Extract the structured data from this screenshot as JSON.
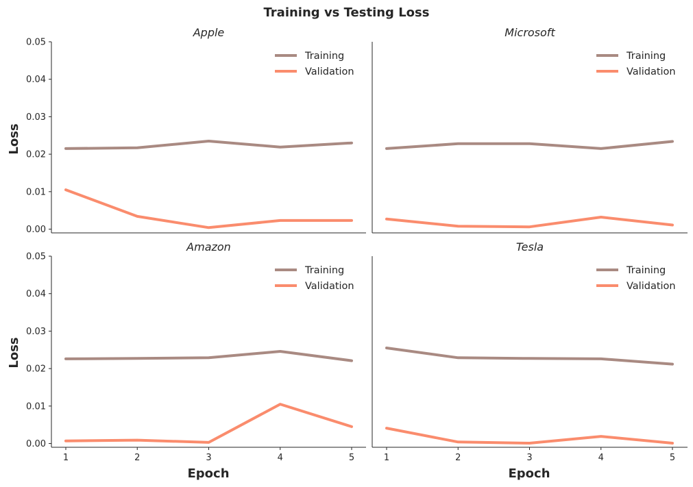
{
  "chart_data": {
    "type": "line",
    "title": "Training vs Testing Loss",
    "xlabel": "Epoch",
    "ylabel": "Loss",
    "x": [
      1,
      2,
      3,
      4,
      5
    ],
    "ylim": [
      -0.001,
      0.05
    ],
    "yticks": [
      "0.00",
      "0.01",
      "0.02",
      "0.03",
      "0.04",
      "0.05"
    ],
    "ytick_values": [
      0,
      0.01,
      0.02,
      0.03,
      0.04,
      0.05
    ],
    "legend_position": "top-right",
    "grid": false,
    "colors": {
      "Training": "#a98a82",
      "Validation": "#fa8c6d"
    },
    "panels": [
      {
        "title": "Apple",
        "series": [
          {
            "name": "Training",
            "values": [
              0.0215,
              0.0217,
              0.0235,
              0.0219,
              0.023
            ]
          },
          {
            "name": "Validation",
            "values": [
              0.0105,
              0.0034,
              0.0004,
              0.0023,
              0.0023
            ]
          }
        ]
      },
      {
        "title": "Microsoft",
        "series": [
          {
            "name": "Training",
            "values": [
              0.0215,
              0.0228,
              0.0228,
              0.0215,
              0.0234
            ]
          },
          {
            "name": "Validation",
            "values": [
              0.0027,
              0.0008,
              0.0006,
              0.0032,
              0.0011
            ]
          }
        ]
      },
      {
        "title": "Amazon",
        "series": [
          {
            "name": "Training",
            "values": [
              0.0226,
              0.0227,
              0.0229,
              0.0246,
              0.0221
            ]
          },
          {
            "name": "Validation",
            "values": [
              0.0007,
              0.0009,
              0.0003,
              0.0105,
              0.0045
            ]
          }
        ]
      },
      {
        "title": "Tesla",
        "series": [
          {
            "name": "Training",
            "values": [
              0.0255,
              0.0229,
              0.0227,
              0.0226,
              0.0212
            ]
          },
          {
            "name": "Validation",
            "values": [
              0.0041,
              0.0004,
              0.0001,
              0.0019,
              0.0001
            ]
          }
        ]
      }
    ]
  }
}
